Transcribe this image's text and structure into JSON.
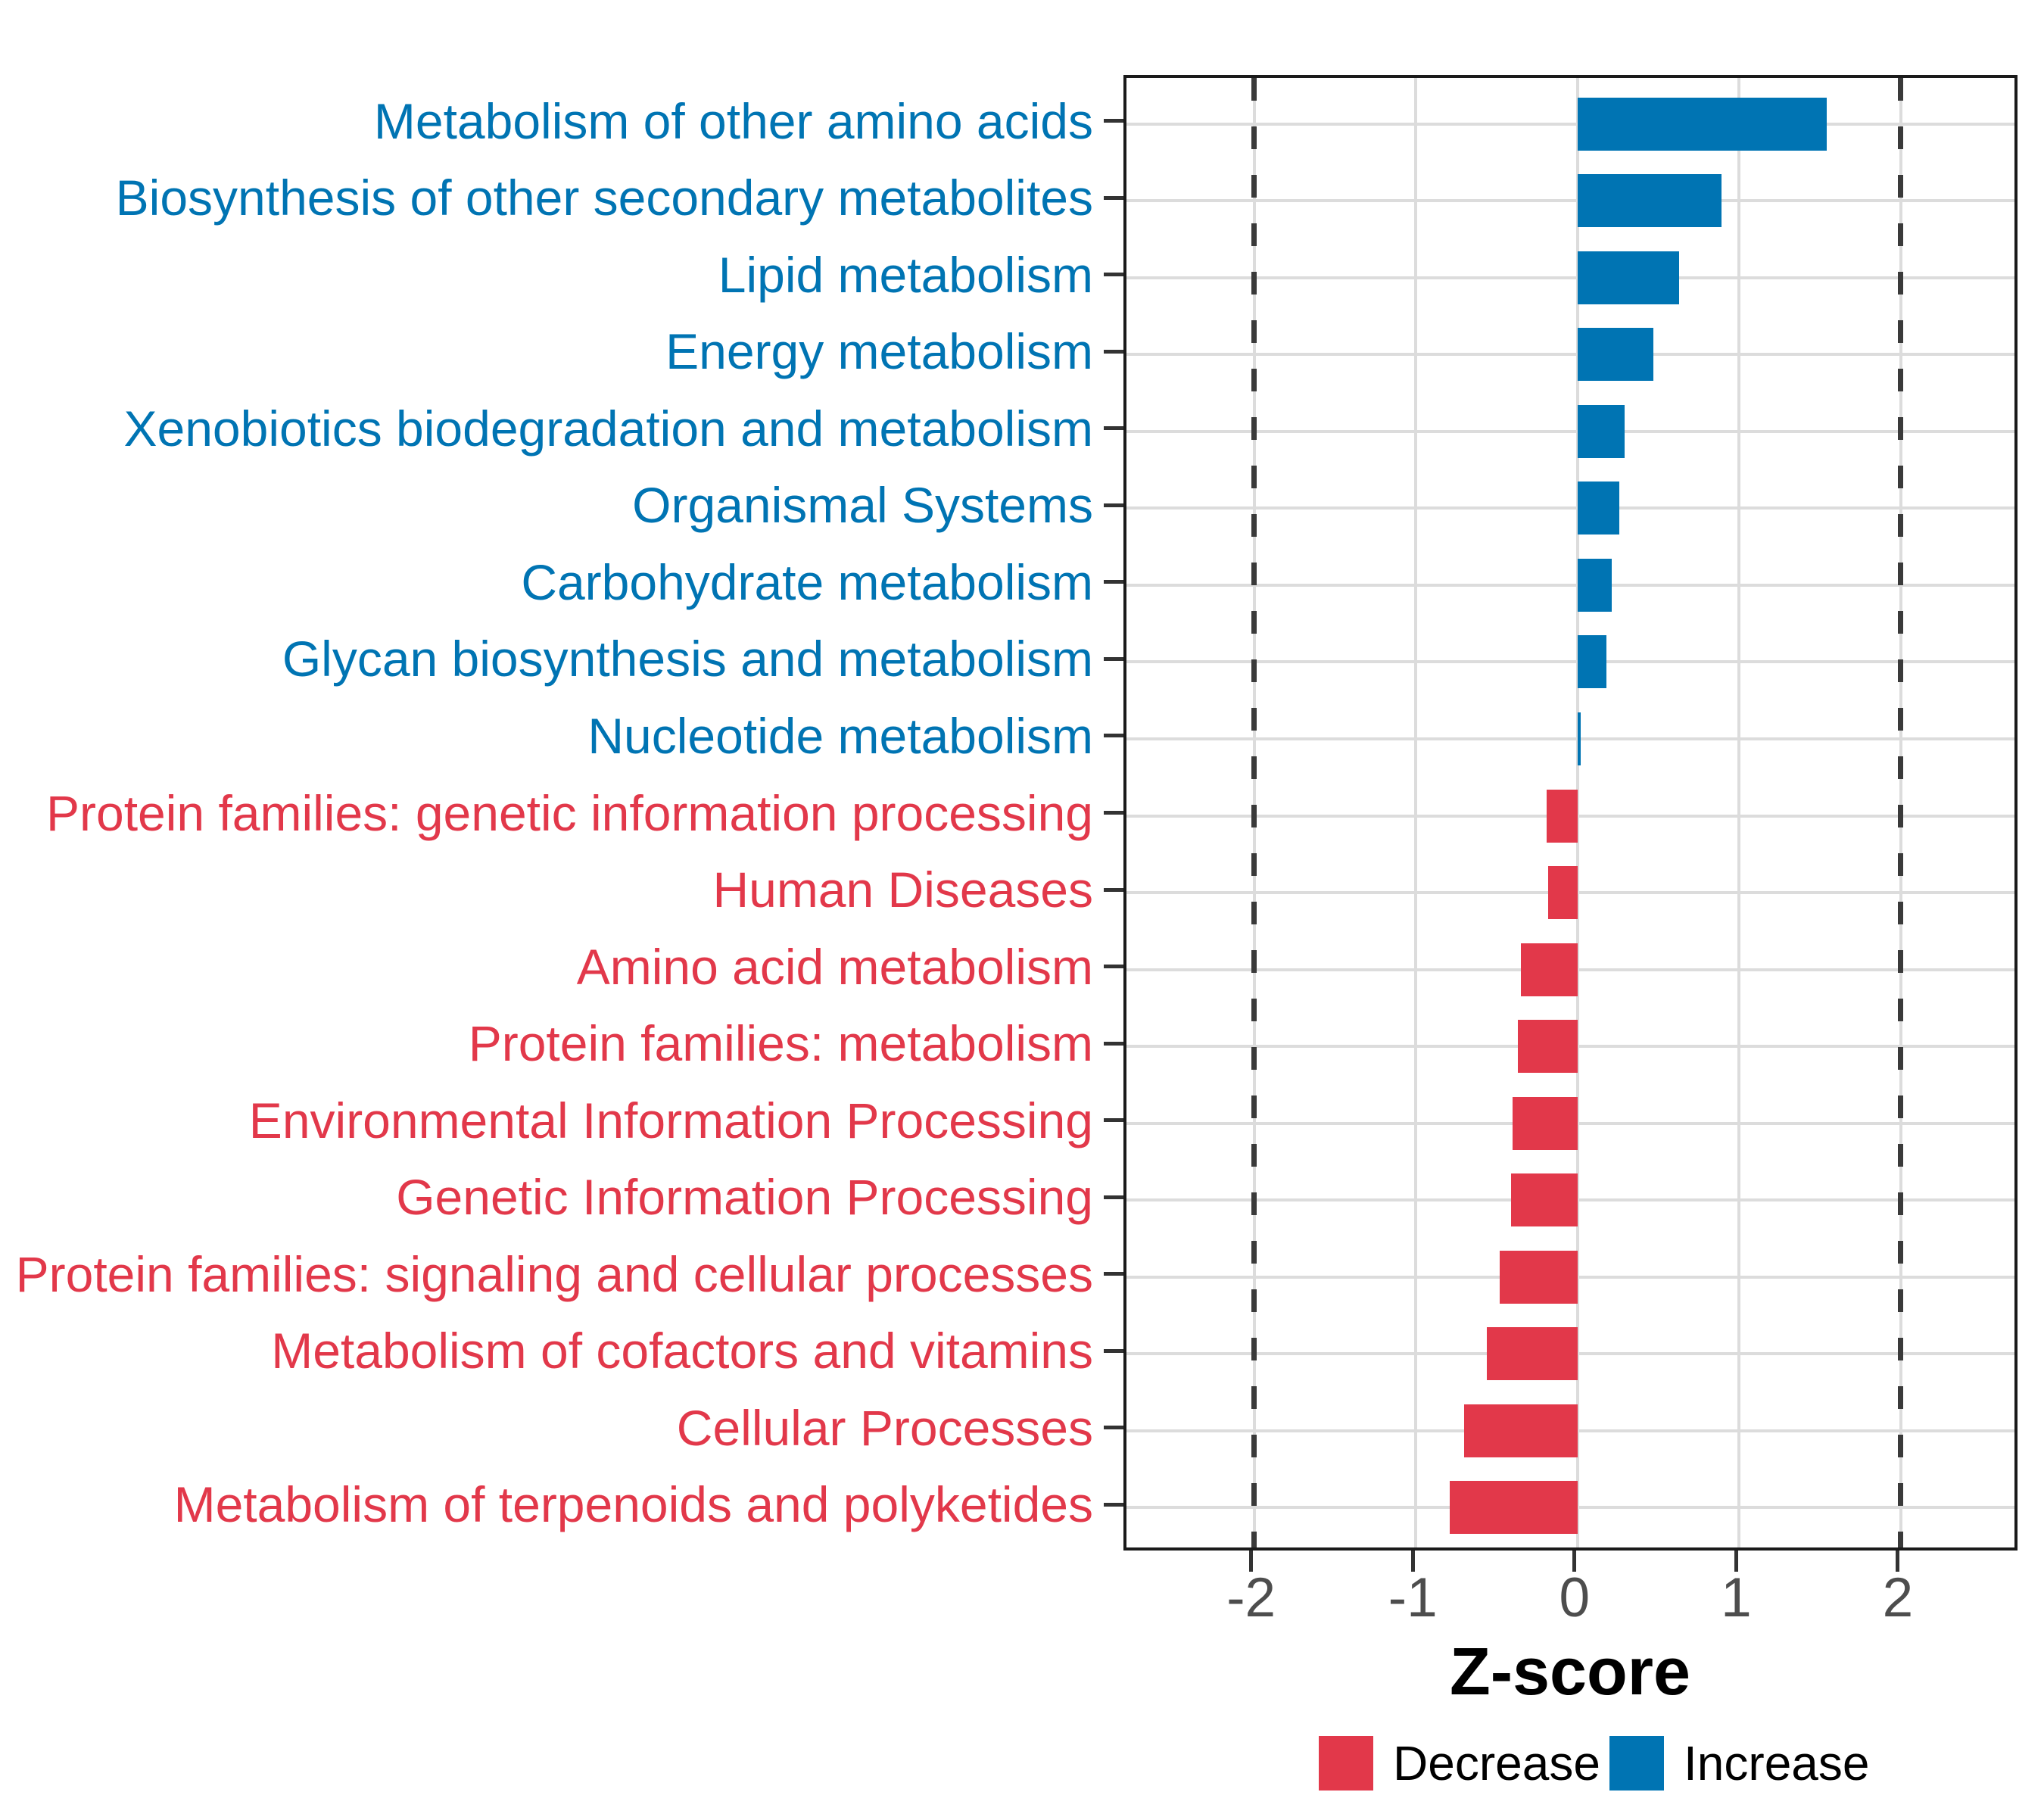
{
  "chart_data": {
    "type": "bar",
    "orientation": "horizontal",
    "title": "",
    "xlabel": "Z-score",
    "ylabel": "",
    "xlim": [
      -2.79,
      2.74
    ],
    "x_ticks": [
      -2,
      -1,
      0,
      1,
      2
    ],
    "x_tick_labels": [
      "-2",
      "-1",
      "0",
      "1",
      "2"
    ],
    "grid": "major",
    "reference_lines": [
      -2,
      2
    ],
    "series": [
      {
        "label": "Metabolism of other amino acids",
        "value": 1.54,
        "group": "Increase"
      },
      {
        "label": "Biosynthesis of other secondary metabolites",
        "value": 0.89,
        "group": "Increase"
      },
      {
        "label": "Lipid metabolism",
        "value": 0.63,
        "group": "Increase"
      },
      {
        "label": "Energy metabolism",
        "value": 0.47,
        "group": "Increase"
      },
      {
        "label": "Xenobiotics biodegradation and metabolism",
        "value": 0.29,
        "group": "Increase"
      },
      {
        "label": "Organismal Systems",
        "value": 0.26,
        "group": "Increase"
      },
      {
        "label": "Carbohydrate metabolism",
        "value": 0.21,
        "group": "Increase"
      },
      {
        "label": "Glycan biosynthesis and metabolism",
        "value": 0.18,
        "group": "Increase"
      },
      {
        "label": "Nucleotide metabolism",
        "value": 0.02,
        "group": "Increase"
      },
      {
        "label": "Protein families: genetic information processing",
        "value": -0.19,
        "group": "Decrease"
      },
      {
        "label": "Human Diseases",
        "value": -0.18,
        "group": "Decrease"
      },
      {
        "label": "Amino acid metabolism",
        "value": -0.35,
        "group": "Decrease"
      },
      {
        "label": "Protein families: metabolism",
        "value": -0.37,
        "group": "Decrease"
      },
      {
        "label": "Environmental Information Processing",
        "value": -0.4,
        "group": "Decrease"
      },
      {
        "label": "Genetic Information Processing",
        "value": -0.41,
        "group": "Decrease"
      },
      {
        "label": "Protein families: signaling and cellular processes",
        "value": -0.48,
        "group": "Decrease"
      },
      {
        "label": "Metabolism of cofactors and vitamins",
        "value": -0.56,
        "group": "Decrease"
      },
      {
        "label": "Cellular Processes",
        "value": -0.7,
        "group": "Decrease"
      },
      {
        "label": "Metabolism of terpenoids and polyketides",
        "value": -0.79,
        "group": "Decrease"
      }
    ],
    "colors": {
      "increase": "#0074B3",
      "decrease": "#E2384A",
      "gridline": "#DCDCDC",
      "panel_border": "#1A1A1A",
      "tick": "#333333",
      "tick_label": "#4D4D4D",
      "reference_line": "#3A3A3A"
    },
    "legend_position": "bottom"
  },
  "legend": {
    "items": [
      {
        "label": "Decrease",
        "color": "#E2384A"
      },
      {
        "label": "Increase",
        "color": "#0074B3"
      }
    ]
  }
}
